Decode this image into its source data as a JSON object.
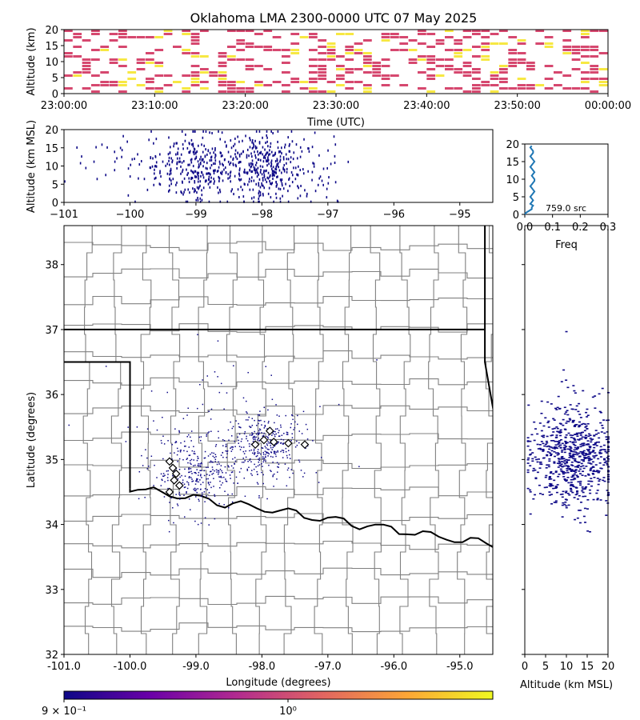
{
  "figure": {
    "title": "Oklahoma LMA 2300-0000 UTC 07 May 2025"
  },
  "chart_data": [
    {
      "id": "time-height",
      "type": "heatmap",
      "xlabel": "Time (UTC)",
      "ylabel": "Altitude (km)",
      "xticks": [
        "23:00:00",
        "23:10:00",
        "23:20:00",
        "23:30:00",
        "23:40:00",
        "23:50:00",
        "00:00:00"
      ],
      "xlim_minutes": [
        0,
        60
      ],
      "ylim": [
        0,
        20
      ],
      "yticks": [
        0,
        5,
        10,
        15,
        20
      ],
      "activity_envelope_minutes": [
        0,
        60
      ],
      "colors": [
        "#d6486f",
        "#f7e843"
      ]
    },
    {
      "id": "lon-alt",
      "type": "scatter",
      "xlabel": "",
      "ylabel": "Altitude (km MSL)",
      "xlim": [
        -101,
        -94.5
      ],
      "xticks": [
        -101,
        -100,
        -99,
        -98,
        -97,
        -96,
        -95
      ],
      "ylim": [
        0,
        20
      ],
      "yticks": [
        0,
        5,
        10,
        15,
        20
      ],
      "clusters": [
        {
          "lon": -99.0,
          "spread": 0.35,
          "weight": 0.45
        },
        {
          "lon": -97.95,
          "spread": 0.3,
          "weight": 0.45
        },
        {
          "lon": -100.2,
          "spread": 0.4,
          "weight": 0.05
        },
        {
          "lon": -97.2,
          "spread": 0.2,
          "weight": 0.05
        }
      ],
      "color": "#0d0887"
    },
    {
      "id": "alt-hist",
      "type": "line",
      "xlabel": "Freq",
      "ylabel": "",
      "xlim": [
        0,
        0.3
      ],
      "xticks": [
        "0.0",
        "0.1",
        "0.2",
        "0.3"
      ],
      "ylim": [
        0,
        20
      ],
      "yticks": [
        0,
        5,
        10,
        15,
        20
      ],
      "freq": [
        0.0,
        0.005,
        0.015,
        0.025,
        0.025,
        0.03,
        0.02,
        0.025,
        0.03,
        0.025,
        0.02,
        0.025,
        0.03,
        0.035,
        0.03,
        0.025,
        0.02,
        0.025,
        0.03,
        0.035,
        0.035,
        0.03,
        0.025,
        0.03,
        0.035,
        0.03,
        0.025,
        0.02,
        0.025,
        0.03,
        0.035,
        0.03,
        0.025,
        0.02,
        0.025,
        0.03,
        0.03,
        0.025,
        0.02,
        0.025
      ],
      "alt": [
        0,
        0.5,
        1,
        1.5,
        2,
        2.5,
        3,
        3.5,
        4,
        4.5,
        5,
        5.5,
        6,
        6.5,
        7,
        7.5,
        8,
        8.5,
        9,
        9.5,
        10,
        10.5,
        11,
        11.5,
        12,
        12.5,
        13,
        13.5,
        14,
        14.5,
        15,
        15.5,
        16,
        16.5,
        17,
        17.5,
        18,
        18.5,
        19,
        19.5
      ],
      "annotation": "759.0 src",
      "color": "#1f77b4"
    },
    {
      "id": "plan-view",
      "type": "scatter",
      "xlabel": "Longitude (degrees)",
      "ylabel": "Latitude (degrees)",
      "xlim": [
        -101,
        -94.5
      ],
      "xticks": [
        "-101.0",
        "-100.0",
        "-99.0",
        "-98.0",
        "-97.0",
        "-96.0",
        "-95.0"
      ],
      "ylim": [
        32,
        38.6
      ],
      "yticks": [
        32,
        33,
        34,
        35,
        36,
        37,
        38
      ],
      "clusters": [
        {
          "lon": -99.0,
          "lat": 34.8,
          "slon": 0.35,
          "slat": 0.3,
          "weight": 0.45
        },
        {
          "lon": -97.95,
          "lat": 35.25,
          "slon": 0.3,
          "slat": 0.25,
          "weight": 0.45
        },
        {
          "lon": -98.5,
          "lat": 35.5,
          "slon": 0.9,
          "slat": 0.6,
          "weight": 0.1
        }
      ],
      "stations": [
        [
          -99.4,
          34.97
        ],
        [
          -99.35,
          34.87
        ],
        [
          -99.3,
          34.78
        ],
        [
          -99.33,
          34.68
        ],
        [
          -99.4,
          34.5
        ],
        [
          -99.25,
          34.6
        ],
        [
          -98.1,
          35.23
        ],
        [
          -97.97,
          35.3
        ],
        [
          -97.88,
          35.44
        ],
        [
          -97.82,
          35.27
        ],
        [
          -97.6,
          35.25
        ],
        [
          -97.35,
          35.23
        ]
      ],
      "color": "#0d0887"
    },
    {
      "id": "alt-lat",
      "type": "scatter",
      "xlabel": "Altitude (km MSL)",
      "ylabel": "",
      "xlim": [
        0,
        20
      ],
      "xticks": [
        0,
        5,
        10,
        15,
        20
      ],
      "ylim": [
        32,
        38.6
      ],
      "color": "#0d0887"
    },
    {
      "id": "colorbar",
      "type": "heatmap",
      "colormap": [
        "#0d0887",
        "#6a00a8",
        "#b12a90",
        "#e16462",
        "#fca636",
        "#f0f921"
      ],
      "tick_label_low": "9 × 10⁻¹",
      "tick_label_high": "10⁰"
    }
  ]
}
